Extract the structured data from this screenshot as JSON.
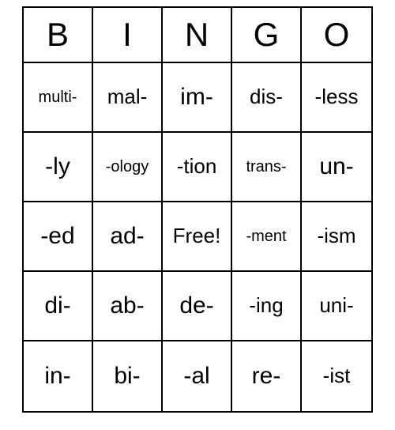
{
  "bingo": {
    "type": "table",
    "background_color": "#ffffff",
    "text_color": "#000000",
    "border_color": "#000000",
    "header_fontsize": 42,
    "columns": 5,
    "rows": 5,
    "headers": [
      "B",
      "I",
      "N",
      "G",
      "O"
    ],
    "cells": [
      [
        {
          "label": "multi-",
          "size": "sm"
        },
        {
          "label": "mal-",
          "size": "md"
        },
        {
          "label": "im-",
          "size": "lg"
        },
        {
          "label": "dis-",
          "size": "md"
        },
        {
          "label": "-less",
          "size": "md"
        }
      ],
      [
        {
          "label": "-ly",
          "size": "lg"
        },
        {
          "label": "-ology",
          "size": "sm"
        },
        {
          "label": "-tion",
          "size": "md"
        },
        {
          "label": "trans-",
          "size": "sm"
        },
        {
          "label": "un-",
          "size": "lg"
        }
      ],
      [
        {
          "label": "-ed",
          "size": "lg"
        },
        {
          "label": "ad-",
          "size": "lg"
        },
        {
          "label": "Free!",
          "size": "md"
        },
        {
          "label": "-ment",
          "size": "sm"
        },
        {
          "label": "-ism",
          "size": "md"
        }
      ],
      [
        {
          "label": "di-",
          "size": "lg"
        },
        {
          "label": "ab-",
          "size": "lg"
        },
        {
          "label": "de-",
          "size": "lg"
        },
        {
          "label": "-ing",
          "size": "md"
        },
        {
          "label": "uni-",
          "size": "md"
        }
      ],
      [
        {
          "label": "in-",
          "size": "lg"
        },
        {
          "label": "bi-",
          "size": "lg"
        },
        {
          "label": "-al",
          "size": "lg"
        },
        {
          "label": "re-",
          "size": "lg"
        },
        {
          "label": "-ist",
          "size": "md"
        }
      ]
    ]
  }
}
